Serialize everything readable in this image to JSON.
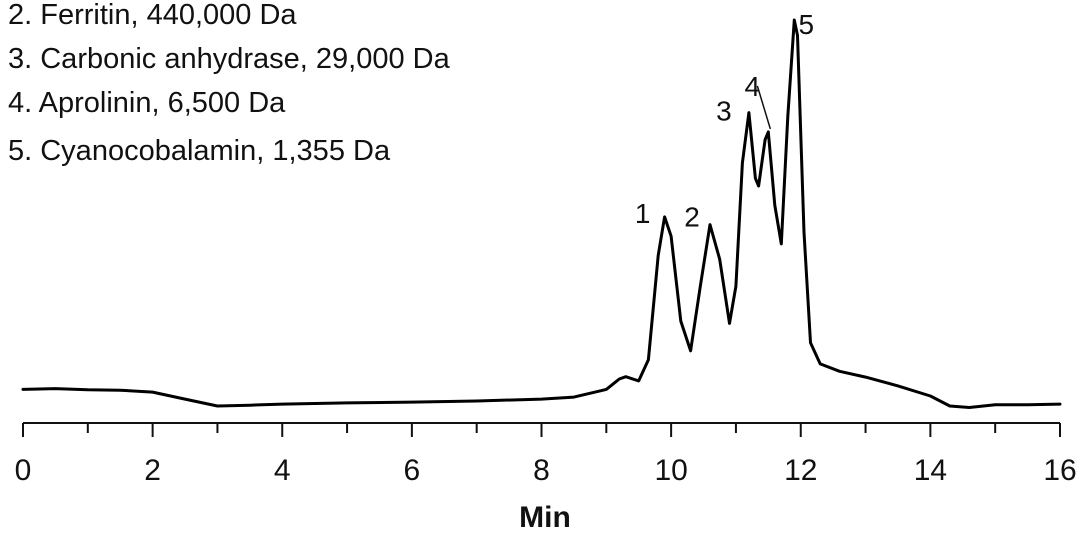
{
  "chart_data": {
    "type": "line",
    "xlabel": "Min",
    "ylabel": "",
    "xlim": [
      0,
      16
    ],
    "x_ticks": [
      "0",
      "2",
      "4",
      "6",
      "8",
      "10",
      "12",
      "14",
      "16"
    ],
    "grid": false,
    "legend_position": "top-left",
    "legend": [
      "2. Ferritin, 440,000 Da",
      "3. Carbonic anhydrase, 29,000 Da",
      "4. Aprolinin, 6,500 Da",
      "5. Cyanocobalamin, 1,355 Da"
    ],
    "peaks": [
      {
        "label": "1",
        "x": 9.9,
        "y": 0.49
      },
      {
        "label": "2",
        "x": 10.6,
        "y": 0.47
      },
      {
        "label": "3",
        "x": 11.2,
        "y": 0.76
      },
      {
        "label": "4",
        "x": 11.5,
        "y": 0.71
      },
      {
        "label": "5",
        "x": 11.9,
        "y": 1.0
      }
    ],
    "series": [
      {
        "color": "#000000",
        "x": [
          0,
          0.5,
          1,
          1.5,
          2,
          2.5,
          3,
          3.5,
          4,
          5,
          6,
          7,
          8,
          8.5,
          9,
          9.2,
          9.3,
          9.5,
          9.65,
          9.8,
          9.9,
          10.0,
          10.15,
          10.3,
          10.45,
          10.6,
          10.75,
          10.9,
          11.0,
          11.1,
          11.2,
          11.3,
          11.35,
          11.45,
          11.5,
          11.6,
          11.7,
          11.8,
          11.9,
          11.95,
          12.05,
          12.15,
          12.3,
          12.6,
          13,
          13.5,
          14,
          14.3,
          14.6,
          15,
          15.5,
          16
        ],
        "y": [
          0.043,
          0.045,
          0.042,
          0.041,
          0.036,
          0.018,
          0.0,
          0.002,
          0.005,
          0.008,
          0.01,
          0.013,
          0.018,
          0.023,
          0.043,
          0.07,
          0.076,
          0.065,
          0.12,
          0.39,
          0.49,
          0.44,
          0.22,
          0.143,
          0.31,
          0.47,
          0.38,
          0.214,
          0.31,
          0.63,
          0.76,
          0.59,
          0.57,
          0.69,
          0.71,
          0.52,
          0.42,
          0.75,
          1.0,
          0.96,
          0.45,
          0.164,
          0.109,
          0.09,
          0.075,
          0.052,
          0.026,
          0.0,
          -0.004,
          0.003,
          0.003,
          0.005
        ]
      }
    ]
  }
}
